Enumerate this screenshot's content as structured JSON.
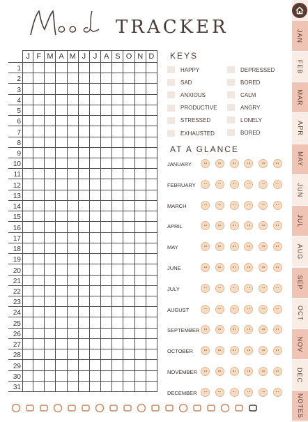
{
  "title": {
    "script": "Mood",
    "word": "TRACKER"
  },
  "months": [
    "J",
    "F",
    "M",
    "A",
    "M",
    "J",
    "J",
    "A",
    "S",
    "O",
    "N",
    "D"
  ],
  "days": [
    "1",
    "2",
    "3",
    "4",
    "5",
    "6",
    "7",
    "8",
    "9",
    "10",
    "11",
    "12",
    "13",
    "14",
    "15",
    "16",
    "17",
    "18",
    "19",
    "20",
    "21",
    "22",
    "23",
    "24",
    "25",
    "26",
    "27",
    "28",
    "29",
    "30",
    "31"
  ],
  "keys": {
    "title": "KEYS",
    "left": [
      "HAPPY",
      "SAD",
      "ANXIOUS",
      "PRODUCTIVE",
      "STRESSED",
      "EXHAUSTED"
    ],
    "right": [
      "DEPRESSED",
      "BORED",
      "CALM",
      "ANGRY",
      "LONELY",
      "BORED"
    ]
  },
  "glance": {
    "title": "AT A GLANCE",
    "months": [
      "JANUARY",
      "FEBRUARY",
      "MARCH",
      "APRIL",
      "MAY",
      "JUNE",
      "JULY",
      "AUGUST",
      "SEPTEMBER",
      "OCTOBER",
      "NOVEMBER",
      "DECEMBER"
    ]
  },
  "tabs": [
    "JAN",
    "FEB",
    "MAR",
    "APR",
    "MAY",
    "JUN",
    "JUL",
    "AUG",
    "SEP",
    "OCT",
    "NOV",
    "DEC",
    "NOTES"
  ],
  "colors": {
    "tab_dark": "#efc4b4",
    "tab_light": "#f8ece4",
    "accent": "#c98a5f",
    "home": "#5a3a2e"
  },
  "bottom_icons": [
    "handshake-icon",
    "money-icon",
    "bowl-icon",
    "house-icon",
    "book-icon",
    "briefcase-icon",
    "film-icon",
    "bed-icon",
    "smiley-icon",
    "puzzle-icon",
    "drop-icon",
    "trophy-icon",
    "cup-icon",
    "exclamation-icon",
    "goblet-icon",
    "speech-icon",
    "thumbs-up-icon",
    "checkmark-icon"
  ]
}
